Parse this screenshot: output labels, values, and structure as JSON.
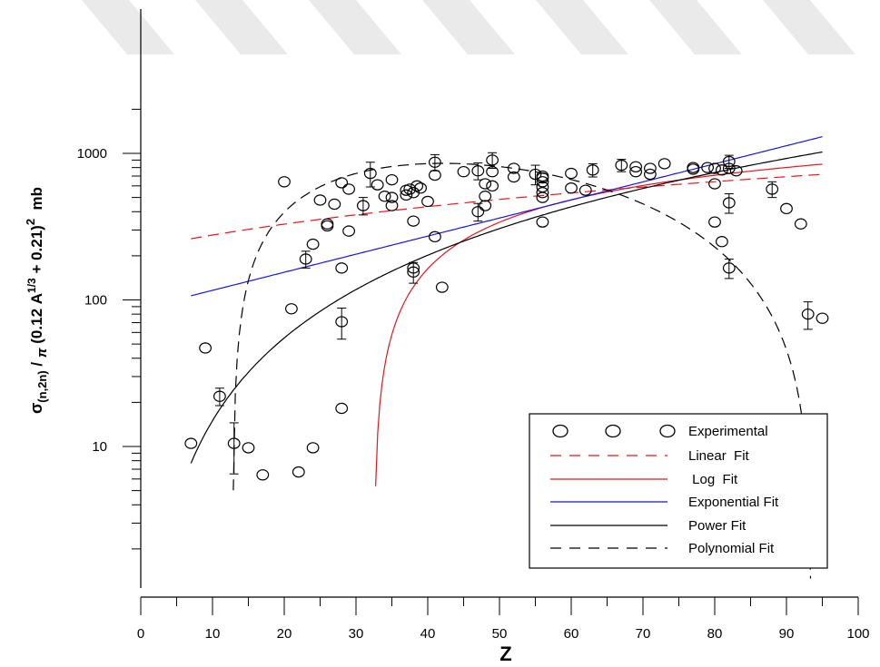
{
  "chart_data": {
    "type": "scatter",
    "title": "",
    "xlabel": "Z",
    "ylabel": {
      "parts": [
        "σ",
        "(n,2n)",
        " / ",
        "π",
        " (0.12 A",
        "1/3",
        " + 0.21)",
        "2",
        "  mb"
      ]
    },
    "xlim": [
      0,
      100
    ],
    "ylim": [
      1,
      10000
    ],
    "yscale": "log",
    "x_ticks": [
      0,
      10,
      20,
      30,
      40,
      50,
      60,
      70,
      80,
      90,
      100
    ],
    "y_tick_labels": [
      "10",
      "100",
      "1000"
    ],
    "y_tick_values": [
      10,
      100,
      1000
    ],
    "grid": false,
    "legend_position": "bottom-right",
    "series": [
      {
        "name": "Experimental",
        "kind": "points",
        "marker": "open-circle",
        "color": "#000000",
        "points": [
          {
            "x": 7,
            "y": 10.5
          },
          {
            "x": 9,
            "y": 47
          },
          {
            "x": 11,
            "y": 22,
            "err": 3
          },
          {
            "x": 13,
            "y": 10.5,
            "err": 4
          },
          {
            "x": 15,
            "y": 9.8
          },
          {
            "x": 17,
            "y": 6.4
          },
          {
            "x": 20,
            "y": 640
          },
          {
            "x": 21,
            "y": 87
          },
          {
            "x": 22,
            "y": 6.7
          },
          {
            "x": 23,
            "y": 190,
            "err": 25
          },
          {
            "x": 24,
            "y": 240
          },
          {
            "x": 24,
            "y": 9.8
          },
          {
            "x": 25,
            "y": 480
          },
          {
            "x": 26,
            "y": 330
          },
          {
            "x": 26,
            "y": 320
          },
          {
            "x": 27,
            "y": 450
          },
          {
            "x": 28,
            "y": 630
          },
          {
            "x": 28,
            "y": 165
          },
          {
            "x": 28,
            "y": 71,
            "err": 17
          },
          {
            "x": 28,
            "y": 18.2
          },
          {
            "x": 29,
            "y": 570
          },
          {
            "x": 29,
            "y": 295
          },
          {
            "x": 31,
            "y": 440,
            "err": 60
          },
          {
            "x": 32,
            "y": 730,
            "err": 140
          },
          {
            "x": 33,
            "y": 610
          },
          {
            "x": 34,
            "y": 510
          },
          {
            "x": 35,
            "y": 660
          },
          {
            "x": 35,
            "y": 500
          },
          {
            "x": 35,
            "y": 440
          },
          {
            "x": 37,
            "y": 560
          },
          {
            "x": 37,
            "y": 520
          },
          {
            "x": 37.5,
            "y": 570
          },
          {
            "x": 38,
            "y": 540
          },
          {
            "x": 38,
            "y": 345
          },
          {
            "x": 38,
            "y": 165
          },
          {
            "x": 38,
            "y": 155,
            "err": 25
          },
          {
            "x": 38.5,
            "y": 600
          },
          {
            "x": 39,
            "y": 580
          },
          {
            "x": 40,
            "y": 470
          },
          {
            "x": 41,
            "y": 870,
            "err": 110
          },
          {
            "x": 41,
            "y": 710
          },
          {
            "x": 41,
            "y": 270
          },
          {
            "x": 42,
            "y": 122
          },
          {
            "x": 45,
            "y": 750
          },
          {
            "x": 47,
            "y": 760,
            "err": 100
          },
          {
            "x": 47,
            "y": 400,
            "err": 55
          },
          {
            "x": 48,
            "y": 620
          },
          {
            "x": 48,
            "y": 510
          },
          {
            "x": 48,
            "y": 440
          },
          {
            "x": 49,
            "y": 900,
            "err": 110
          },
          {
            "x": 49,
            "y": 750
          },
          {
            "x": 49,
            "y": 600
          },
          {
            "x": 52,
            "y": 790
          },
          {
            "x": 52,
            "y": 690
          },
          {
            "x": 55,
            "y": 720,
            "err": 110
          },
          {
            "x": 56,
            "y": 700
          },
          {
            "x": 56,
            "y": 680
          },
          {
            "x": 56,
            "y": 640
          },
          {
            "x": 56,
            "y": 590
          },
          {
            "x": 56,
            "y": 540
          },
          {
            "x": 56,
            "y": 500
          },
          {
            "x": 56,
            "y": 340
          },
          {
            "x": 60,
            "y": 730
          },
          {
            "x": 60,
            "y": 580
          },
          {
            "x": 62,
            "y": 560
          },
          {
            "x": 63,
            "y": 770,
            "err": 80
          },
          {
            "x": 67,
            "y": 830,
            "err": 80
          },
          {
            "x": 69,
            "y": 810
          },
          {
            "x": 69,
            "y": 750
          },
          {
            "x": 71,
            "y": 790
          },
          {
            "x": 71,
            "y": 720
          },
          {
            "x": 73,
            "y": 850
          },
          {
            "x": 77,
            "y": 800
          },
          {
            "x": 77,
            "y": 780
          },
          {
            "x": 79,
            "y": 800
          },
          {
            "x": 80,
            "y": 790
          },
          {
            "x": 80,
            "y": 620
          },
          {
            "x": 80,
            "y": 340
          },
          {
            "x": 81,
            "y": 770
          },
          {
            "x": 81,
            "y": 250
          },
          {
            "x": 82,
            "y": 880,
            "err": 90
          },
          {
            "x": 82,
            "y": 790
          },
          {
            "x": 82,
            "y": 460,
            "err": 70
          },
          {
            "x": 82,
            "y": 165,
            "err": 25
          },
          {
            "x": 83,
            "y": 760
          },
          {
            "x": 88,
            "y": 570,
            "err": 70
          },
          {
            "x": 90,
            "y": 420
          },
          {
            "x": 92,
            "y": 330
          },
          {
            "x": 93,
            "y": 80,
            "err": 17
          },
          {
            "x": 95,
            "y": 75
          }
        ]
      },
      {
        "name": "Linear  Fit",
        "kind": "curve",
        "model": "linear",
        "params": {
          "a": 225,
          "b": 5.2
        },
        "x_range": [
          7,
          95
        ],
        "color": "#e8141c",
        "dash": "dashed"
      },
      {
        "name": " Log  Fit",
        "kind": "curve",
        "model": "log",
        "params": {
          "a": -2740,
          "b": 787
        },
        "x_range": [
          7.3,
          95
        ],
        "color": "#e8141c",
        "dash": "solid"
      },
      {
        "name": "Exponential Fit",
        "kind": "curve",
        "model": "exponential",
        "params": {
          "a": 87.5,
          "b": 0.0284
        },
        "x_range": [
          7,
          95
        ],
        "color": "#1414dc",
        "dash": "solid"
      },
      {
        "name": "Power Fit",
        "kind": "curve",
        "model": "power",
        "params": {
          "a": 0.2,
          "b": 1.875
        },
        "x_range": [
          7,
          95
        ],
        "color": "#000000",
        "dash": "solid"
      },
      {
        "name": "Polynomial Fit",
        "kind": "curve",
        "model": "polynomial",
        "params": {
          "coeffs": [
            -1100,
            107.5,
            -1.8,
            0.0083
          ]
        },
        "x_range": [
          12.9,
          95
        ],
        "color": "#000000",
        "dash": "dashed"
      }
    ]
  }
}
